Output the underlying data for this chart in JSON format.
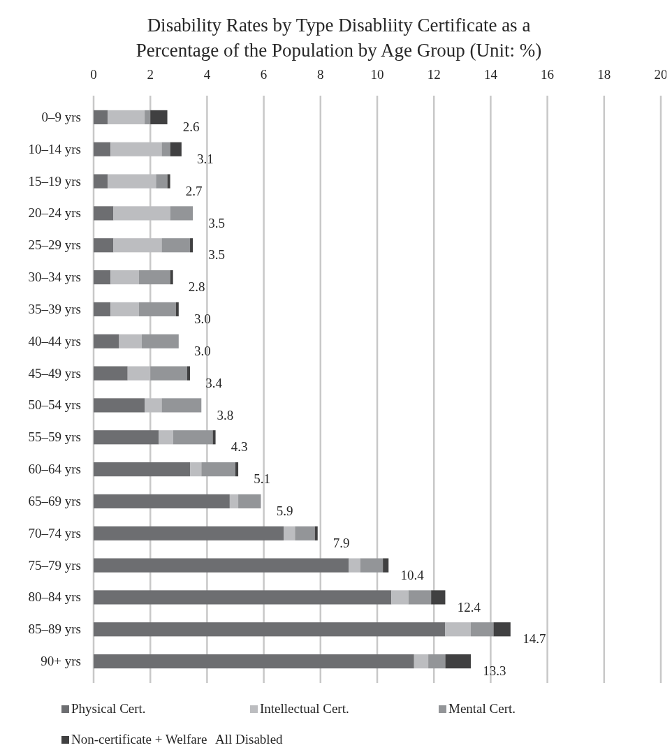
{
  "chart_data": {
    "type": "bar",
    "orientation": "horizontal",
    "stacked": true,
    "title": "Disability Rates by Type Disabliity Certificate as a Percentage of the Population by Age Group (Unit: %)",
    "categories": [
      "0–9 yrs",
      "10–14 yrs",
      "15–19 yrs",
      "20–24 yrs",
      "25–29 yrs",
      "30–34 yrs",
      "35–39 yrs",
      "40–44 yrs",
      "45–49 yrs",
      "50–54 yrs",
      "55–59 yrs",
      "60–64 yrs",
      "65–69 yrs",
      "70–74 yrs",
      "75–79 yrs",
      "80–84 yrs",
      "85–89 yrs",
      "90+ yrs"
    ],
    "series": [
      {
        "name": "Physical Cert.",
        "color": "#6d6e71",
        "values": [
          0.5,
          0.6,
          0.5,
          0.7,
          0.7,
          0.6,
          0.6,
          0.9,
          1.2,
          1.8,
          2.3,
          3.4,
          4.8,
          6.7,
          9.0,
          10.5,
          12.4,
          11.3
        ]
      },
      {
        "name": "Intellectual Cert.",
        "color": "#bcbdc0",
        "values": [
          1.3,
          1.8,
          1.7,
          2.0,
          1.7,
          1.0,
          1.0,
          0.8,
          0.8,
          0.6,
          0.5,
          0.4,
          0.3,
          0.4,
          0.4,
          0.6,
          0.9,
          0.5
        ]
      },
      {
        "name": "Mental Cert.",
        "color": "#939598",
        "values": [
          0.2,
          0.3,
          0.4,
          0.8,
          1.0,
          1.1,
          1.3,
          1.3,
          1.3,
          1.4,
          1.4,
          1.2,
          0.8,
          0.7,
          0.8,
          0.8,
          0.8,
          0.6
        ]
      },
      {
        "name": "Non-certificate + Welfare",
        "color": "#404041",
        "values": [
          0.6,
          0.4,
          0.1,
          0,
          0.1,
          0.1,
          0.1,
          0,
          0.1,
          0,
          0.1,
          0.1,
          0,
          0.1,
          0.2,
          0.5,
          0.6,
          0.9
        ]
      }
    ],
    "totals": [
      "2.6",
      "3.1",
      "2.7",
      "3.5",
      "3.5",
      "2.8",
      "3.0",
      "3.0",
      "3.4",
      "3.8",
      "4.3",
      "5.1",
      "5.9",
      "7.9",
      "10.4",
      "12.4",
      "14.7",
      "13.3"
    ],
    "annotations": [
      "All Disabled"
    ],
    "xlim": [
      0,
      20
    ],
    "xticks": [
      0,
      2,
      4,
      6,
      8,
      10,
      12,
      14,
      16,
      18,
      20
    ],
    "grid": "x",
    "legend": "bottom"
  }
}
